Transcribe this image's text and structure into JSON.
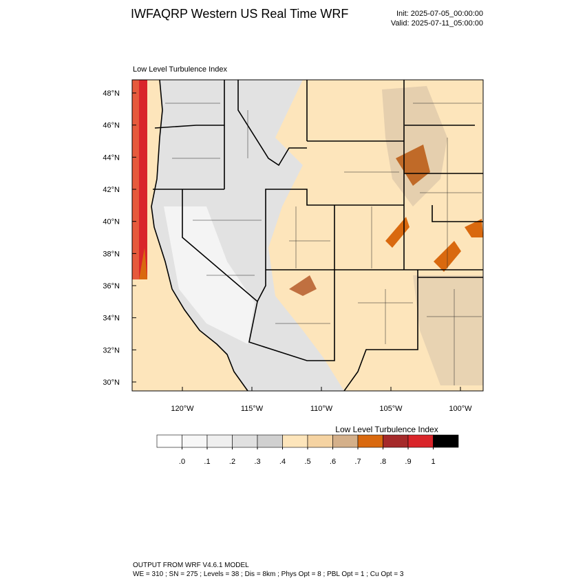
{
  "header": {
    "title": "IWFAQRP Western US Real Time WRF",
    "init": "Init: 2025-07-05_00:00:00",
    "valid": "Valid: 2025-07-11_05:00:00"
  },
  "map": {
    "subtitle": "Low Level Turbulence Index",
    "lat_ticks": [
      {
        "value": 30,
        "label": "30°N"
      },
      {
        "value": 32,
        "label": "32°N"
      },
      {
        "value": 34,
        "label": "34°N"
      },
      {
        "value": 36,
        "label": "36°N"
      },
      {
        "value": 38,
        "label": "38°N"
      },
      {
        "value": 40,
        "label": "40°N"
      },
      {
        "value": 42,
        "label": "42°N"
      },
      {
        "value": 44,
        "label": "44°N"
      },
      {
        "value": 46,
        "label": "46°N"
      },
      {
        "value": 48,
        "label": "48°N"
      }
    ],
    "lon_ticks": [
      {
        "value": -120,
        "label": "120°W"
      },
      {
        "value": -115,
        "label": "115°W"
      },
      {
        "value": -110,
        "label": "110°W"
      },
      {
        "value": -105,
        "label": "105°W"
      },
      {
        "value": -100,
        "label": "100°W"
      }
    ]
  },
  "colorbar": {
    "title": "Low Level Turbulence Index",
    "levels": [
      {
        "value": 0,
        "label": ".0"
      },
      {
        "value": 0.1,
        "label": ".1"
      },
      {
        "value": 0.2,
        "label": ".2"
      },
      {
        "value": 0.3,
        "label": ".3"
      },
      {
        "value": 0.4,
        "label": ".4"
      },
      {
        "value": 0.5,
        "label": ".5"
      },
      {
        "value": 0.6,
        "label": ".6"
      },
      {
        "value": 0.7,
        "label": ".7"
      },
      {
        "value": 0.8,
        "label": ".8"
      },
      {
        "value": 0.9,
        "label": ".9"
      },
      1
    ],
    "colors": [
      "#ffffff",
      "#f7f7f7",
      "#efefef",
      "#e0e0e0",
      "#d0d0d0",
      "#fde5bb",
      "#f5d3a2",
      "#d4b08a",
      "#d9690f",
      "#a52a2a",
      "#d9252a",
      "#000000"
    ]
  },
  "footer": {
    "line1": "OUTPUT FROM WRF V4.6.1 MODEL",
    "line2": "WE = 310 ; SN = 275 ; Levels = 38 ; Dis = 8km ; Phys Opt = 8 ; PBL Opt = 1 ; Cu Opt = 3"
  }
}
